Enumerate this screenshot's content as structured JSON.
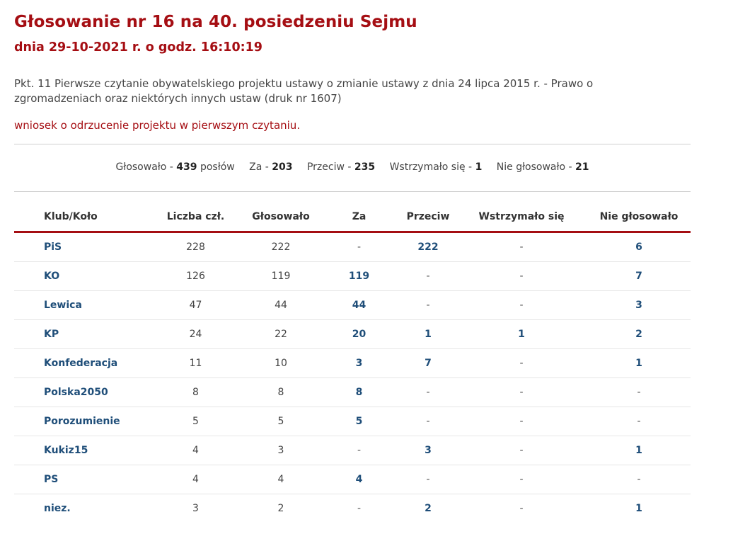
{
  "header": {
    "title": "Głosowanie nr 16 na 40. posiedzeniu Sejmu",
    "subtitle": "dnia 29-10-2021 r. o godz. 16:10:19"
  },
  "topic": "Pkt. 11 Pierwsze czytanie obywatelskiego projektu ustawy o zmianie ustawy z dnia 24 lipca 2015 r. - Prawo o zgromadzeniach oraz niektórych innych ustaw (druk nr 1607)",
  "motion": "wniosek o odrzucenie projektu w pierwszym czytaniu.",
  "summary": {
    "voted_label": "Głosowało -",
    "voted_value": "439",
    "voted_suffix": "posłów",
    "for_label": "Za -",
    "for_value": "203",
    "against_label": "Przeciw -",
    "against_value": "235",
    "abstain_label": "Wstrzymało się -",
    "abstain_value": "1",
    "absent_label": "Nie głosowało -",
    "absent_value": "21"
  },
  "table": {
    "headers": [
      "Klub/Koło",
      "Liczba czł.",
      "Głosowało",
      "Za",
      "Przeciw",
      "Wstrzymało się",
      "Nie głosowało"
    ],
    "rows": [
      {
        "club": "PiS",
        "members": "228",
        "voted": "222",
        "for": "-",
        "against": "222",
        "abstain": "-",
        "absent": "6"
      },
      {
        "club": "KO",
        "members": "126",
        "voted": "119",
        "for": "119",
        "against": "-",
        "abstain": "-",
        "absent": "7"
      },
      {
        "club": "Lewica",
        "members": "47",
        "voted": "44",
        "for": "44",
        "against": "-",
        "abstain": "-",
        "absent": "3"
      },
      {
        "club": "KP",
        "members": "24",
        "voted": "22",
        "for": "20",
        "against": "1",
        "abstain": "1",
        "absent": "2"
      },
      {
        "club": "Konfederacja",
        "members": "11",
        "voted": "10",
        "for": "3",
        "against": "7",
        "abstain": "-",
        "absent": "1"
      },
      {
        "club": "Polska2050",
        "members": "8",
        "voted": "8",
        "for": "8",
        "against": "-",
        "abstain": "-",
        "absent": "-"
      },
      {
        "club": "Porozumienie",
        "members": "5",
        "voted": "5",
        "for": "5",
        "against": "-",
        "abstain": "-",
        "absent": "-"
      },
      {
        "club": "Kukiz15",
        "members": "4",
        "voted": "3",
        "for": "-",
        "against": "3",
        "abstain": "-",
        "absent": "1"
      },
      {
        "club": "PS",
        "members": "4",
        "voted": "4",
        "for": "4",
        "against": "-",
        "abstain": "-",
        "absent": "-"
      },
      {
        "club": "niez.",
        "members": "3",
        "voted": "2",
        "for": "-",
        "against": "2",
        "abstain": "-",
        "absent": "1"
      }
    ]
  },
  "colors": {
    "accent": "#a50e13",
    "link": "#1f4e79"
  }
}
